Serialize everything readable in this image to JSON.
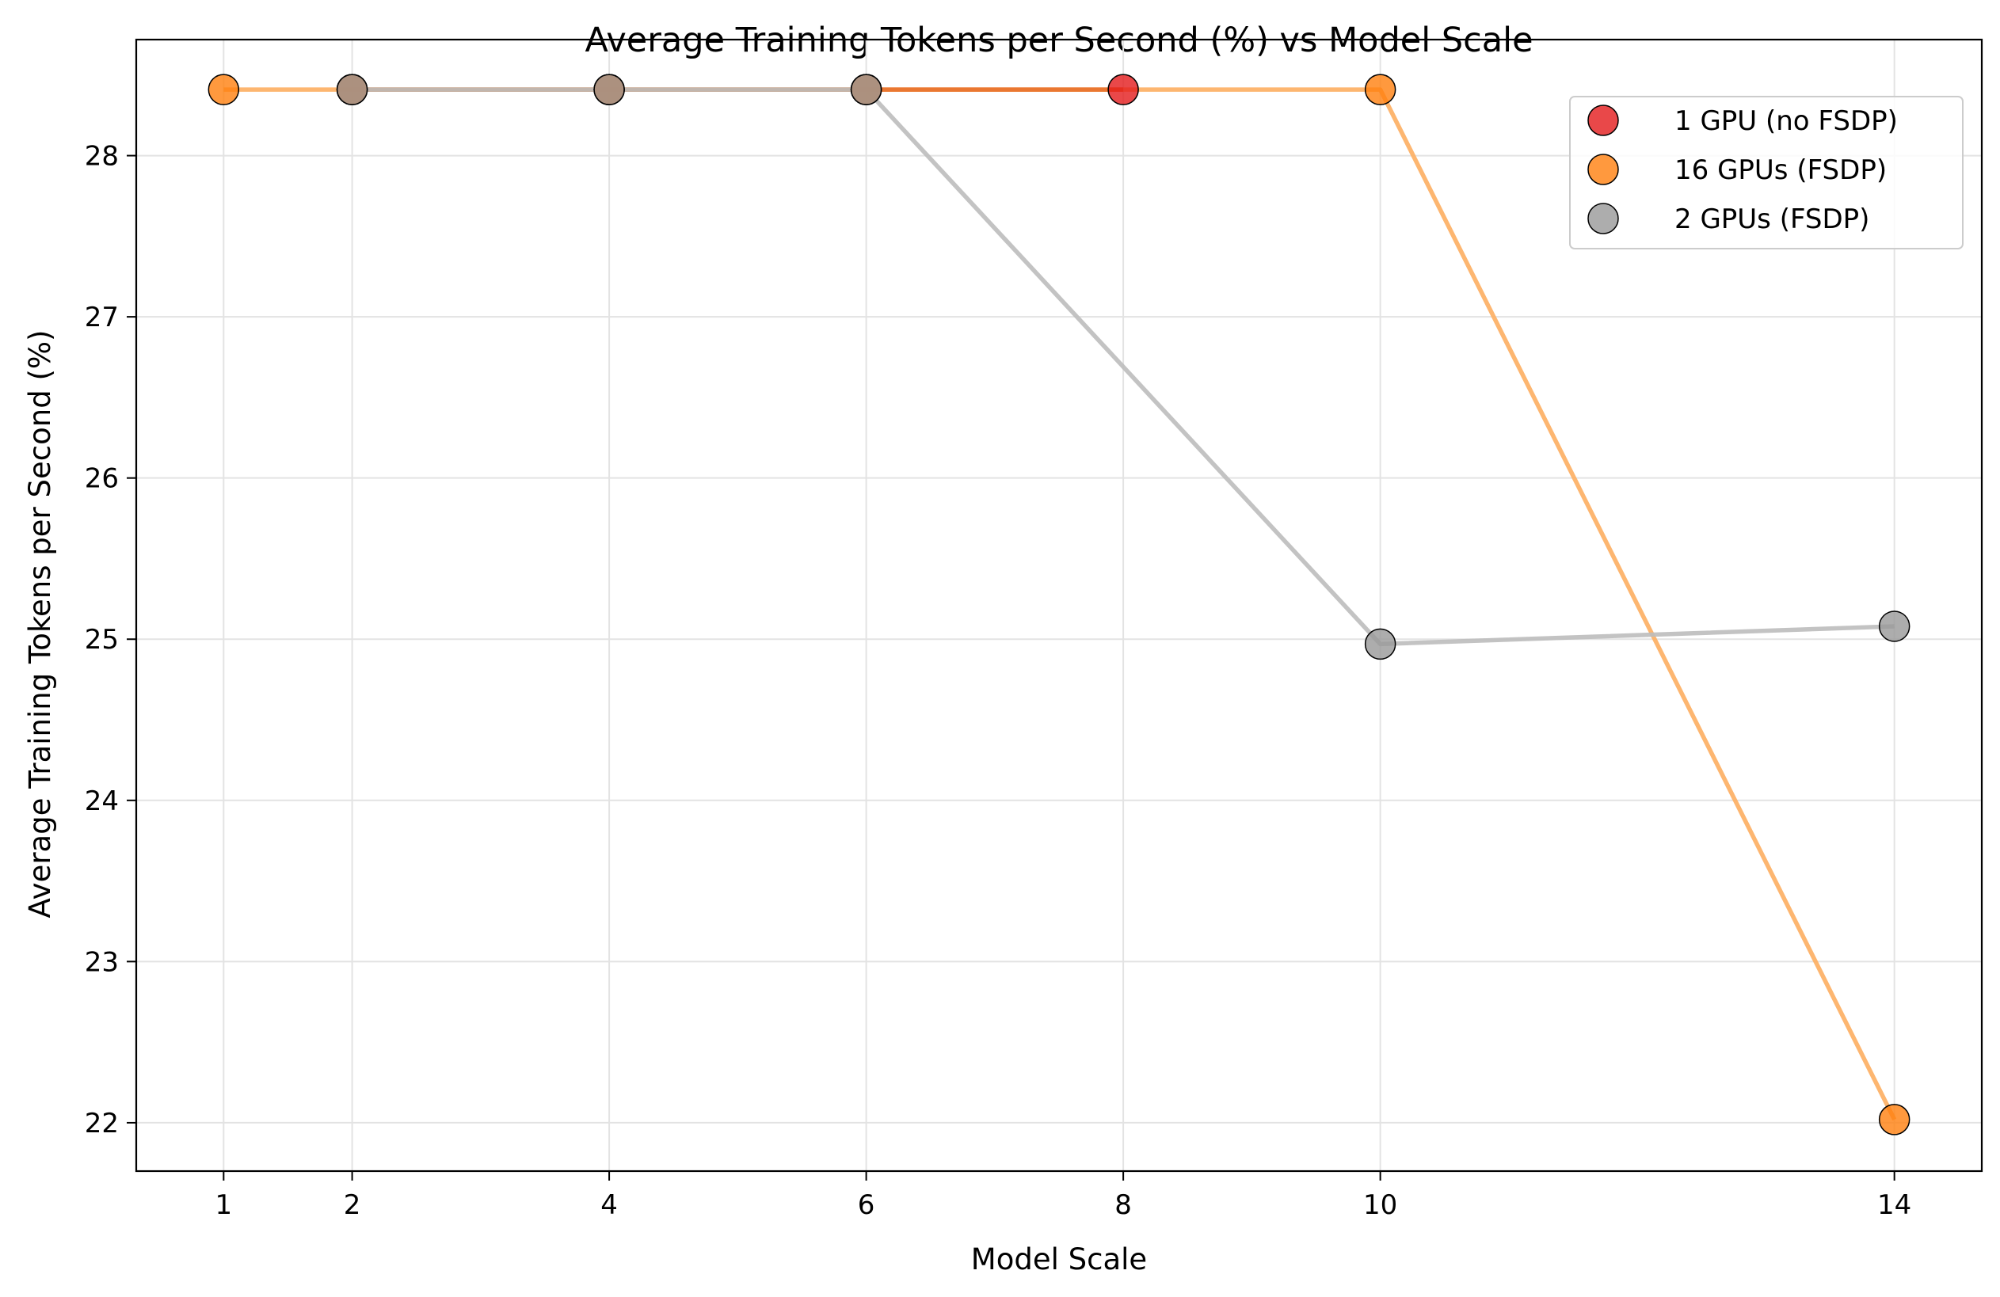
{
  "chart_data": {
    "type": "line",
    "title": "Average Training Tokens per Second (%) vs Model Scale",
    "xlabel": "Model Scale",
    "ylabel": "Average Training Tokens per Second (%)",
    "xticks": [
      1,
      2,
      4,
      6,
      8,
      10,
      14
    ],
    "yticks": [
      22,
      23,
      24,
      25,
      26,
      27,
      28
    ],
    "xlim": [
      0.32,
      14.68
    ],
    "ylim": [
      21.7,
      28.72
    ],
    "grid": true,
    "legend_position": "top-right",
    "series": [
      {
        "name": "1 GPU (no FSDP)",
        "color": "#e41a1c",
        "line_color": "#e8702a",
        "x": [
          2,
          4,
          6,
          8
        ],
        "y": [
          28.41,
          28.41,
          28.41,
          28.41
        ]
      },
      {
        "name": "16 GPUs (FSDP)",
        "color": "#ff7f0e",
        "line_color": "#fdae61",
        "x": [
          1,
          2,
          4,
          6,
          10,
          14
        ],
        "y": [
          28.41,
          28.41,
          28.41,
          28.41,
          28.41,
          22.02
        ]
      },
      {
        "name": "2 GPUs (FSDP)",
        "color": "#999999",
        "line_color": "#bdbdbd",
        "x": [
          2,
          4,
          6,
          10,
          14
        ],
        "y": [
          28.41,
          28.41,
          28.41,
          24.97,
          25.08
        ]
      }
    ]
  }
}
